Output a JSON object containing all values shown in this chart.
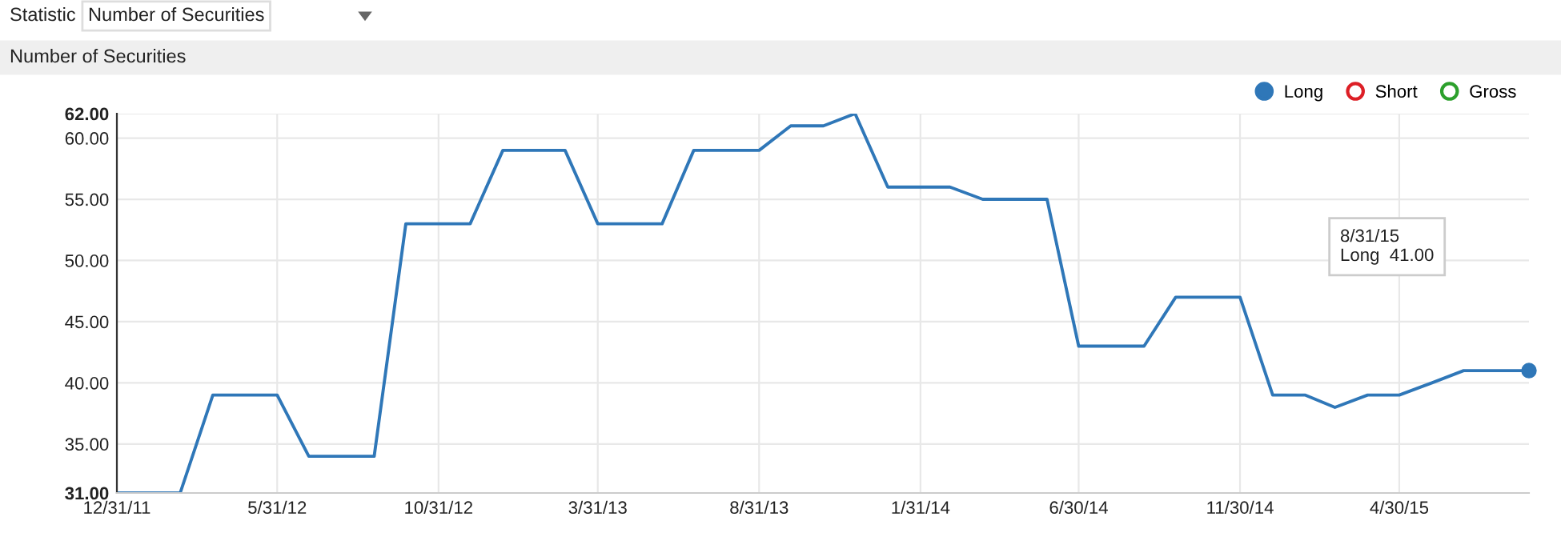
{
  "chart_data": {
    "type": "line",
    "title": "Number of Securities",
    "annotations": [
      "Statistic",
      "Number of Securities",
      "8/31/15\nLong  41.00"
    ],
    "x": [
      "2011-12-31",
      "2012-01-31",
      "2012-02-29",
      "2012-03-31",
      "2012-04-30",
      "2012-05-31",
      "2012-06-30",
      "2012-07-31",
      "2012-08-31",
      "2012-09-30",
      "2012-10-31",
      "2012-11-30",
      "2012-12-31",
      "2013-01-31",
      "2013-02-28",
      "2013-03-31",
      "2013-04-30",
      "2013-05-31",
      "2013-06-30",
      "2013-07-31",
      "2013-08-31",
      "2013-09-30",
      "2013-10-31",
      "2013-11-30",
      "2013-12-31",
      "2014-01-31",
      "2014-02-28",
      "2014-03-31",
      "2014-04-30",
      "2014-05-31",
      "2014-06-30",
      "2014-07-31",
      "2014-08-31",
      "2014-09-30",
      "2014-10-31",
      "2014-11-30",
      "2014-12-31",
      "2015-01-31",
      "2015-02-28",
      "2015-03-31",
      "2015-04-30",
      "2015-05-31",
      "2015-06-30",
      "2015-07-31",
      "2015-08-31"
    ],
    "series": [
      {
        "name": "Long",
        "color": "#2f77b8",
        "values": [
          31,
          31,
          31,
          39,
          39,
          39,
          34,
          34,
          34,
          53,
          53,
          53,
          59,
          59,
          59,
          53,
          53,
          53,
          59,
          59,
          59,
          61,
          61,
          62,
          56,
          56,
          56,
          55,
          55,
          55,
          43,
          43,
          43,
          47,
          47,
          47,
          39,
          39,
          38,
          39,
          39,
          40,
          41,
          41,
          41
        ]
      },
      {
        "name": "Short",
        "color": "#dd1f26",
        "values": [
          null,
          null,
          null,
          null,
          null,
          null,
          null,
          null,
          null,
          null,
          null,
          null,
          null,
          null,
          null,
          null,
          null,
          null,
          null,
          null,
          null,
          null,
          null,
          null,
          null,
          null,
          null,
          null,
          null,
          null,
          null,
          null,
          null,
          null,
          null,
          null,
          null,
          null,
          null,
          null,
          null,
          null,
          null,
          null,
          null
        ]
      },
      {
        "name": "Gross",
        "color": "#2ca02c",
        "values": [
          null,
          null,
          null,
          null,
          null,
          null,
          null,
          null,
          null,
          null,
          null,
          null,
          null,
          null,
          null,
          null,
          null,
          null,
          null,
          null,
          null,
          null,
          null,
          null,
          null,
          null,
          null,
          null,
          null,
          null,
          null,
          null,
          null,
          null,
          null,
          null,
          null,
          null,
          null,
          null,
          null,
          null,
          null,
          null,
          null
        ]
      }
    ],
    "xlim": [
      "2011-12-31",
      "2015-08-31"
    ],
    "xticks": [
      {
        "value": "2011-12-31",
        "label": "12/31/11"
      },
      {
        "value": "2012-05-31",
        "label": "5/31/12"
      },
      {
        "value": "2012-10-31",
        "label": "10/31/12"
      },
      {
        "value": "2013-03-31",
        "label": "3/31/13"
      },
      {
        "value": "2013-08-31",
        "label": "8/31/13"
      },
      {
        "value": "2014-01-31",
        "label": "1/31/14"
      },
      {
        "value": "2014-06-30",
        "label": "6/30/14"
      },
      {
        "value": "2014-11-30",
        "label": "11/30/14"
      },
      {
        "value": "2015-04-30",
        "label": "4/30/15"
      }
    ],
    "ylim": [
      31,
      62
    ],
    "yticks": [
      {
        "value": 31,
        "label": "31.00"
      },
      {
        "value": 35,
        "label": "35.00"
      },
      {
        "value": 40,
        "label": "40.00"
      },
      {
        "value": 45,
        "label": "45.00"
      },
      {
        "value": 50,
        "label": "50.00"
      },
      {
        "value": 55,
        "label": "55.00"
      },
      {
        "value": 60,
        "label": "60.00"
      },
      {
        "value": 62,
        "label": "62.00"
      }
    ],
    "grid": true,
    "legend": "top right",
    "marker": "none",
    "line_style": "solid"
  }
}
